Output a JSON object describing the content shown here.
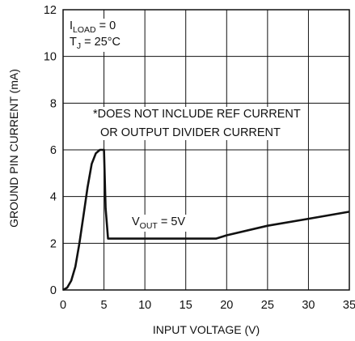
{
  "chart_data": {
    "type": "line",
    "title": "",
    "xlabel": "INPUT VOLTAGE (V)",
    "ylabel": "GROUND PIN CURRENT (mA)",
    "xlim": [
      0,
      35
    ],
    "ylim": [
      0,
      12
    ],
    "x_ticks": [
      "0",
      "5",
      "10",
      "15",
      "20",
      "25",
      "30",
      "35"
    ],
    "y_ticks": [
      "0",
      "2",
      "4",
      "6",
      "8",
      "10",
      "12"
    ],
    "grid": true,
    "conditions": {
      "iload_main": "I",
      "iload_sub": "LOAD",
      "iload_rest": " = 0",
      "tj_main": "T",
      "tj_sub": "J",
      "tj_rest": " = 25°C"
    },
    "notes": [
      "*DOES NOT INCLUDE REF CURRENT",
      "OR OUTPUT DIVIDER CURRENT"
    ],
    "curve_label": {
      "main": "V",
      "sub": "OUT",
      "rest": " = 5V"
    },
    "series": [
      {
        "name": "",
        "x": [
          0,
          0.5,
          1,
          1.5,
          2,
          2.5,
          3,
          3.5,
          4,
          4.5,
          5,
          5.2,
          5.5,
          10,
          15,
          18.7,
          20,
          25,
          30,
          35
        ],
        "y": [
          0,
          0.1,
          0.4,
          1.0,
          2.0,
          3.2,
          4.4,
          5.4,
          5.85,
          6.0,
          6.0,
          3.5,
          2.2,
          2.2,
          2.2,
          2.2,
          2.34,
          2.75,
          3.05,
          3.35
        ]
      }
    ]
  }
}
